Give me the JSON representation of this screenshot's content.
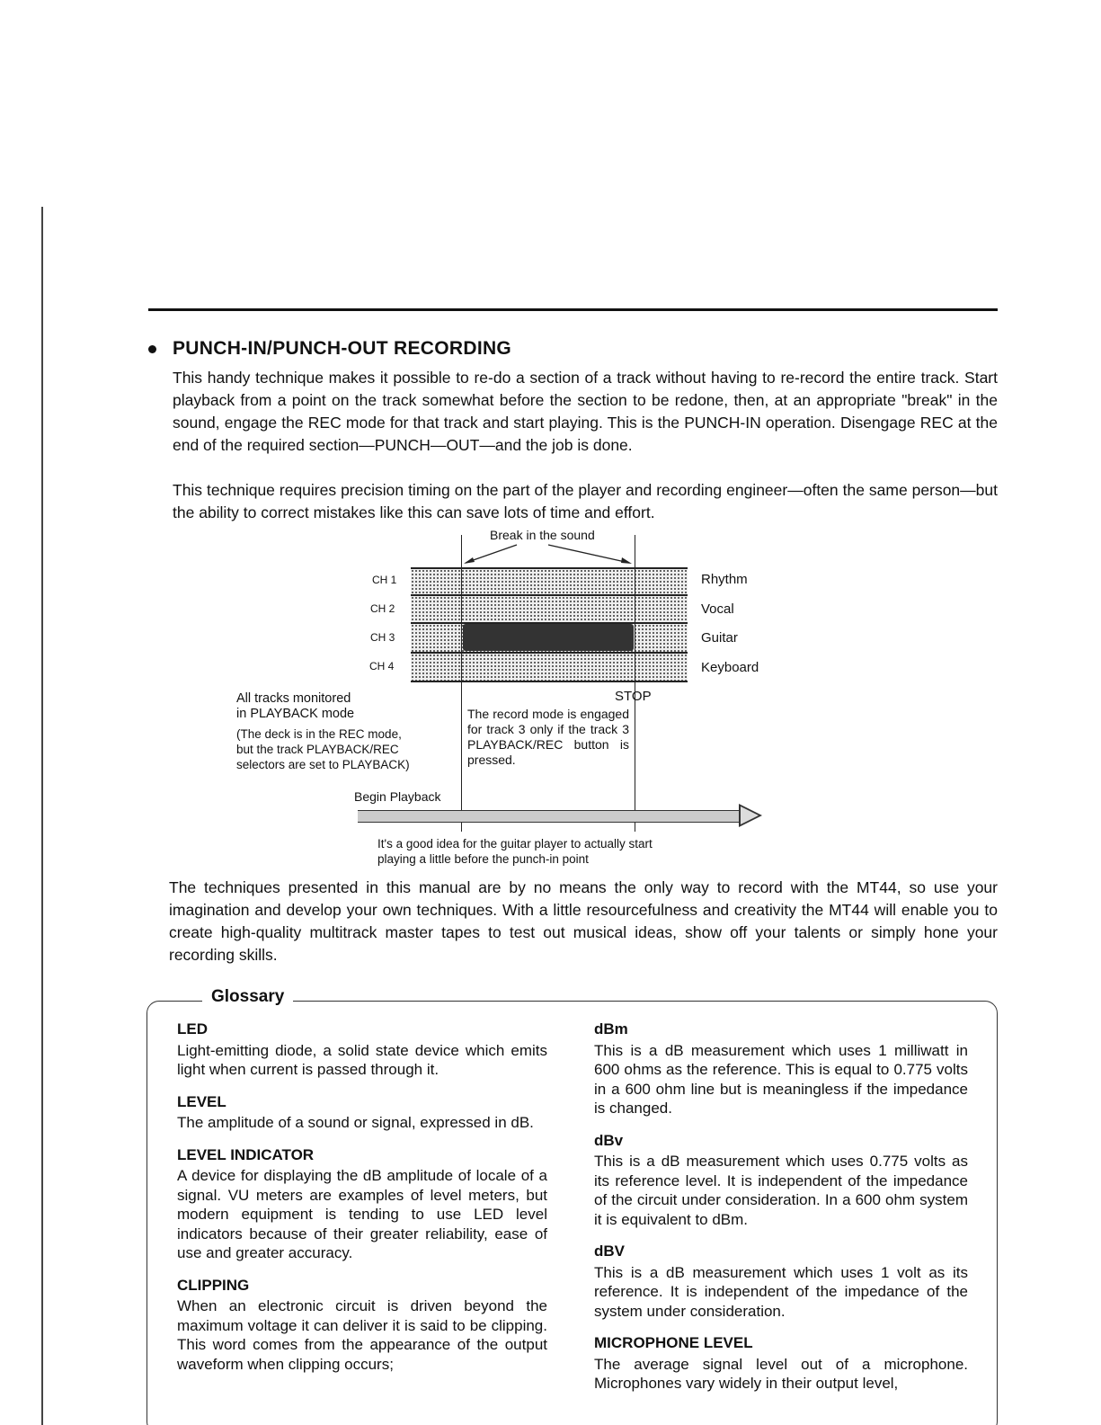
{
  "section": {
    "title": "PUNCH-IN/PUNCH-OUT RECORDING",
    "paragraphs": [
      "This handy technique makes it possible to re-do a section of a track without having to re-record the entire track. Start playback from a point on the track somewhat before the section to be redone, then, at an appropriate \"break\" in the sound, engage the REC mode for that track and start playing. This is the PUNCH-IN operation. Disengage REC at the end of the required section—PUNCH—OUT—and the job is done.",
      "This technique requires precision timing on the part of the player and recording engineer—often the same person—but the ability to correct mistakes like this can save lots of time and effort."
    ]
  },
  "diagram": {
    "break_label": "Break in the sound",
    "channels": [
      "CH 1",
      "CH 2",
      "CH 3",
      "CH 4"
    ],
    "instruments": [
      "Rhythm",
      "Vocal",
      "Guitar",
      "Keyboard"
    ],
    "stop_label": "STOP",
    "monitor_note": [
      "All tracks monitored",
      "in PLAYBACK mode"
    ],
    "deck_note": [
      "(The deck is in the REC mode,",
      "but the track PLAYBACK/REC",
      "selectors are set to PLAYBACK)"
    ],
    "record_note": "The record mode is engaged for track 3 only if the track 3 PLAYBACK/REC button is pressed.",
    "begin_label": "Begin Playback",
    "tip": [
      "It's a good idea for the guitar player to actually start",
      "playing a little before the punch-in point"
    ]
  },
  "closing": "The techniques presented in this manual are by no means the only way to record with the MT44, so use your imagination and develop your own techniques. With a little resourcefulness and creativity the MT44 will enable you to create high-quality multitrack master tapes to test out musical ideas, show off your talents or simply hone your recording skills.",
  "glossary": {
    "title": "Glossary",
    "left": [
      {
        "term": "LED",
        "def": "Light-emitting diode, a solid state device which emits light when current is passed through it."
      },
      {
        "term": "LEVEL",
        "def": "The amplitude of a sound or signal, expressed in dB."
      },
      {
        "term": "LEVEL INDICATOR",
        "def": "A device for displaying the dB amplitude of locale of a signal. VU meters are examples of level meters, but modern equipment is tending to use LED level indicators because of their greater reliability, ease of use and greater accuracy."
      },
      {
        "term": "CLIPPING",
        "def": "When an electronic circuit is driven beyond the maximum voltage it can deliver it is said to be clipping. This word comes from the appearance of the output waveform when clipping occurs;"
      }
    ],
    "right": [
      {
        "term": "dBm",
        "def": "This is a dB measurement which uses 1 milliwatt in 600 ohms as the reference. This is equal to 0.775 volts in a 600 ohm line but is meaningless if the impedance is changed."
      },
      {
        "term": "dBv",
        "def": "This is a dB measurement which uses 0.775 volts as its reference level. It is independent of the impedance of the circuit under consideration. In a 600 ohm system it is equivalent to dBm."
      },
      {
        "term": "dBV",
        "def": "This is a dB measurement which uses 1 volt as its reference. It is independent of the impedance of the system under consideration."
      },
      {
        "term": "MICROPHONE LEVEL",
        "def": "The average signal level out of a microphone. Microphones vary widely in their output level,"
      }
    ]
  }
}
